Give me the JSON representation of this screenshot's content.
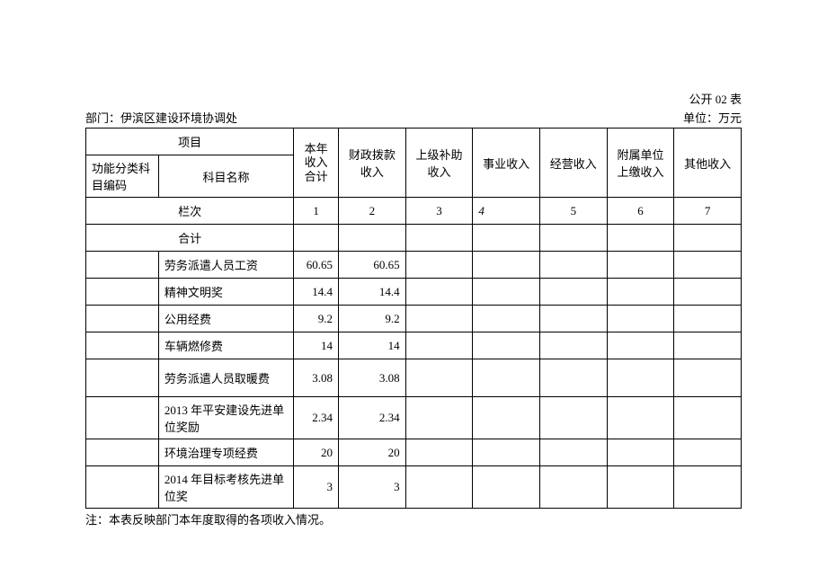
{
  "header": {
    "form_code": "公开 02 表",
    "department_label": "部门：伊滨区建设环境协调处",
    "unit_label": "单位：万元"
  },
  "columns": {
    "project": "项目",
    "code": "功能分类科目编码",
    "name": "科目名称",
    "col1": "本年收入合计",
    "col2": "财政拨款收入",
    "col3": "上级补助收入",
    "col4": "事业收入",
    "col5": "经营收入",
    "col6": "附属单位上缴收入",
    "col7": "其他收入",
    "lanci": "栏次",
    "n1": "1",
    "n2": "2",
    "n3": "3",
    "n4": "4",
    "n5": "5",
    "n6": "6",
    "n7": "7",
    "heji": "合计"
  },
  "rows": [
    {
      "name": "劳务派遣人员工资",
      "c1": "60.65",
      "c2": "60.65",
      "c3": "",
      "c4": "",
      "c5": "",
      "c6": "",
      "c7": ""
    },
    {
      "name": "精神文明奖",
      "c1": "14.4",
      "c2": "14.4",
      "c3": "",
      "c4": "",
      "c5": "",
      "c6": "",
      "c7": ""
    },
    {
      "name": "公用经费",
      "c1": "9.2",
      "c2": "9.2",
      "c3": "",
      "c4": "",
      "c5": "",
      "c6": "",
      "c7": ""
    },
    {
      "name": "车辆燃修费",
      "c1": "14",
      "c2": "14",
      "c3": "",
      "c4": "",
      "c5": "",
      "c6": "",
      "c7": ""
    },
    {
      "name": "劳务派遣人员取暖费",
      "c1": "3.08",
      "c2": "3.08",
      "c3": "",
      "c4": "",
      "c5": "",
      "c6": "",
      "c7": ""
    },
    {
      "name": "2013 年平安建设先进单位奖励",
      "c1": "2.34",
      "c2": "2.34",
      "c3": "",
      "c4": "",
      "c5": "",
      "c6": "",
      "c7": ""
    },
    {
      "name": "环境治理专项经费",
      "c1": "20",
      "c2": "20",
      "c3": "",
      "c4": "",
      "c5": "",
      "c6": "",
      "c7": ""
    },
    {
      "name": "2014 年目标考核先进单位奖",
      "c1": "3",
      "c2": "3",
      "c3": "",
      "c4": "",
      "c5": "",
      "c6": "",
      "c7": ""
    }
  ],
  "footnote": "注：本表反映部门本年度取得的各项收入情况。"
}
